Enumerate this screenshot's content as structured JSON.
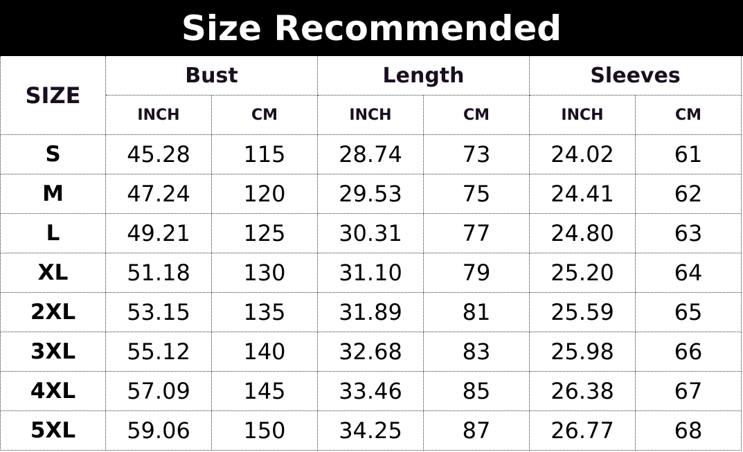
{
  "title": "Size Recommended",
  "table": {
    "size_header": "SIZE",
    "groups": [
      "Bust",
      "Length",
      "Sleeves"
    ],
    "units": [
      "INCH",
      "CM"
    ],
    "rows": [
      {
        "size": "S",
        "values": [
          "45.28",
          "115",
          "28.74",
          "73",
          "24.02",
          "61"
        ]
      },
      {
        "size": "M",
        "values": [
          "47.24",
          "120",
          "29.53",
          "75",
          "24.41",
          "62"
        ]
      },
      {
        "size": "L",
        "values": [
          "49.21",
          "125",
          "30.31",
          "77",
          "24.80",
          "63"
        ]
      },
      {
        "size": "XL",
        "values": [
          "51.18",
          "130",
          "31.10",
          "79",
          "25.20",
          "64"
        ]
      },
      {
        "size": "2XL",
        "values": [
          "53.15",
          "135",
          "31.89",
          "81",
          "25.59",
          "65"
        ]
      },
      {
        "size": "3XL",
        "values": [
          "55.12",
          "140",
          "32.68",
          "83",
          "25.98",
          "66"
        ]
      },
      {
        "size": "4XL",
        "values": [
          "57.09",
          "145",
          "33.46",
          "85",
          "26.38",
          "67"
        ]
      },
      {
        "size": "5XL",
        "values": [
          "59.06",
          "150",
          "34.25",
          "87",
          "26.77",
          "68"
        ]
      }
    ]
  }
}
